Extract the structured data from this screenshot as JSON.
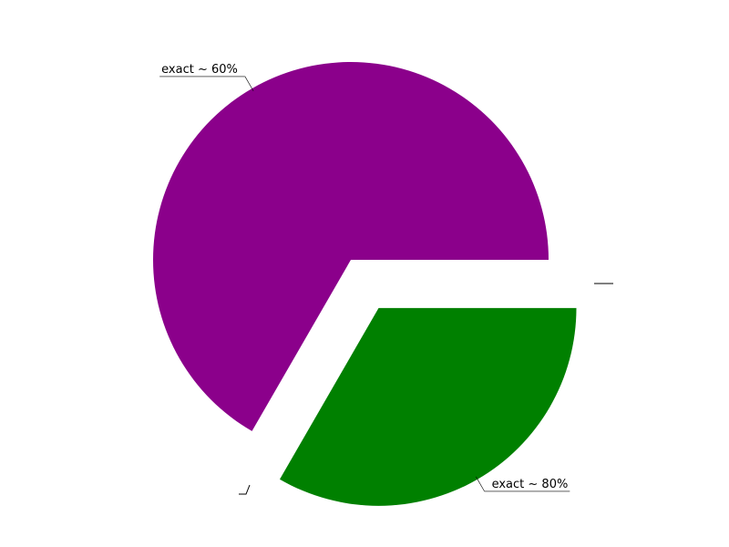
{
  "chart_data": {
    "type": "pie",
    "slices": [
      {
        "label": "exact ~ 60%",
        "value": 240,
        "color": "#8b008b",
        "exploded": false
      },
      {
        "label": "exact ~ 80%",
        "value": 120,
        "color": "#008000",
        "exploded": true
      }
    ],
    "start_angle_deg": 0,
    "direction": "counterclockwise",
    "title": "",
    "legend": "none"
  }
}
